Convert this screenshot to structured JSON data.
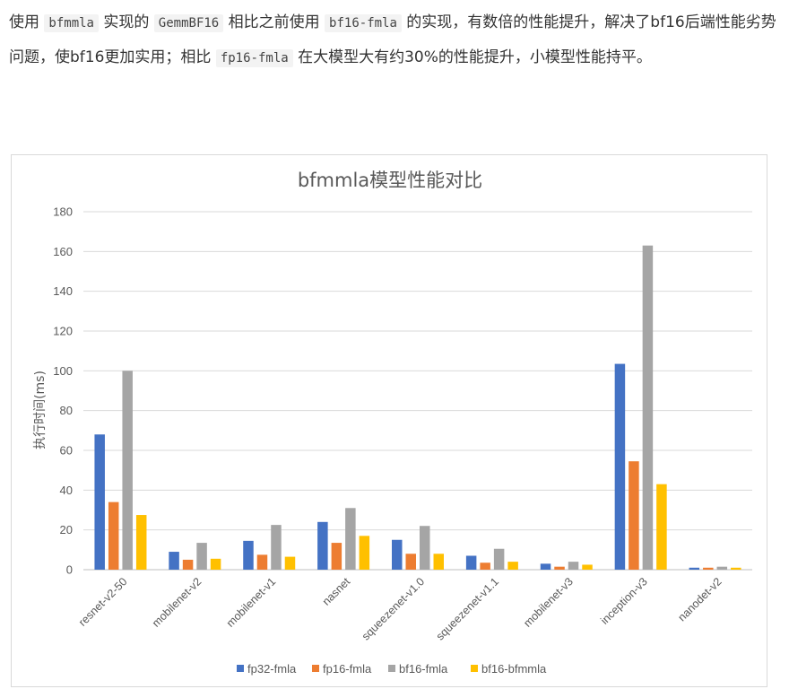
{
  "intro": {
    "parts": [
      {
        "text": "使用 ",
        "code": false
      },
      {
        "text": "bfmmla",
        "code": true
      },
      {
        "text": " 实现的 ",
        "code": false
      },
      {
        "text": "GemmBF16",
        "code": true
      },
      {
        "text": " 相比之前使用 ",
        "code": false
      },
      {
        "text": "bf16-fmla",
        "code": true
      },
      {
        "text": " 的实现，有数倍的性能提升，解决了bf16后端性能劣势问题，使bf16更加实用；相比 ",
        "code": false
      },
      {
        "text": "fp16-fmla",
        "code": true
      },
      {
        "text": " 在大模型大有约30%的性能提升，小模型性能持平。",
        "code": false
      }
    ]
  },
  "chart_data": {
    "type": "bar",
    "title": "bfmmla模型性能对比",
    "xlabel": "",
    "ylabel": "执行时间(ms)",
    "ylim": [
      0,
      180
    ],
    "yticks": [
      0,
      20,
      40,
      60,
      80,
      100,
      120,
      140,
      160,
      180
    ],
    "grid": true,
    "legend_position": "bottom",
    "categories": [
      "resnet-v2-50",
      "mobilenet-v2",
      "mobilenet-v1",
      "nasnet",
      "squeezenet-v1.0",
      "squeezenet-v1.1",
      "mobilenet-v3",
      "inception-v3",
      "nanodet-v2"
    ],
    "series": [
      {
        "name": "fp32-fmla",
        "color": "#4472c4",
        "values": [
          68,
          9,
          14.5,
          24,
          15,
          7,
          3,
          103.5,
          1
        ]
      },
      {
        "name": "fp16-fmla",
        "color": "#ed7d31",
        "values": [
          34,
          5,
          7.5,
          13.5,
          8,
          3.5,
          1.5,
          54.5,
          1
        ]
      },
      {
        "name": "bf16-fmla",
        "color": "#a5a5a5",
        "values": [
          100,
          13.5,
          22.5,
          31,
          22,
          10.5,
          4,
          163,
          1.5
        ]
      },
      {
        "name": "bf16-bfmmla",
        "color": "#ffc000",
        "values": [
          27.5,
          5.5,
          6.5,
          17,
          8,
          4,
          2.5,
          43,
          1
        ]
      }
    ]
  }
}
